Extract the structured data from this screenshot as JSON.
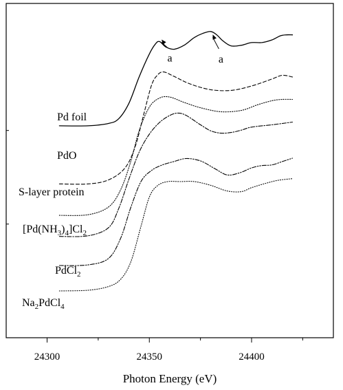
{
  "chart_data": {
    "type": "line",
    "title": "",
    "xlabel": "Photon Energy (eV)",
    "ylabel": "",
    "xlim": [
      24280,
      24440
    ],
    "x_ticks": [
      24300,
      24350,
      24400
    ],
    "x_tick_labels": [
      "24300",
      "24350",
      "24400"
    ],
    "y_units": "normalized absorption, vertically offset (arbitrary)",
    "ylim": [
      0,
      1
    ],
    "grid": false,
    "legend": "labels placed beside each curve",
    "series": [
      {
        "name": "Pd foil",
        "label_parts": [
          {
            "t": "Pd foil",
            "sub": false
          }
        ],
        "style": "solid",
        "x": [
          24306,
          24320,
          24330,
          24335,
          24340,
          24345,
          24350,
          24353,
          24355,
          24358,
          24362,
          24367,
          24372,
          24376,
          24380,
          24383,
          24386,
          24390,
          24395,
          24400,
          24405,
          24410,
          24414,
          24417,
          24420
        ],
        "y": [
          0.634,
          0.634,
          0.641,
          0.655,
          0.701,
          0.78,
          0.849,
          0.879,
          0.886,
          0.87,
          0.863,
          0.875,
          0.898,
          0.91,
          0.916,
          0.906,
          0.888,
          0.873,
          0.875,
          0.883,
          0.883,
          0.891,
          0.903,
          0.906,
          0.906
        ]
      },
      {
        "name": "PdO",
        "label_parts": [
          {
            "t": "PdO",
            "sub": false
          }
        ],
        "style": "dashed",
        "x": [
          24306,
          24320,
          24330,
          24338,
          24343,
          24347,
          24351,
          24354,
          24357,
          24362,
          24370,
          24380,
          24390,
          24400,
          24410,
          24415,
          24420
        ],
        "y": [
          0.46,
          0.46,
          0.472,
          0.507,
          0.57,
          0.662,
          0.754,
          0.786,
          0.795,
          0.782,
          0.759,
          0.742,
          0.74,
          0.753,
          0.774,
          0.785,
          0.78
        ]
      },
      {
        "name": "S-layer protein",
        "label_parts": [
          {
            "t": "S-layer protein",
            "sub": false
          }
        ],
        "style": "dotted",
        "x": [
          24306,
          24320,
          24330,
          24336,
          24341,
          24345,
          24350,
          24355,
          24360,
          24367,
          24375,
          24385,
          24395,
          24403,
          24410,
          24415,
          24420
        ],
        "y": [
          0.366,
          0.368,
          0.391,
          0.443,
          0.529,
          0.619,
          0.69,
          0.717,
          0.72,
          0.704,
          0.688,
          0.676,
          0.68,
          0.697,
          0.709,
          0.713,
          0.713
        ]
      },
      {
        "name": "[Pd(NH3)4]Cl2",
        "label_parts": [
          {
            "t": "[Pd(NH",
            "sub": false
          },
          {
            "t": "3",
            "sub": true
          },
          {
            "t": ")",
            "sub": false
          },
          {
            "t": "4",
            "sub": true
          },
          {
            "t": "]Cl",
            "sub": false
          },
          {
            "t": "2",
            "sub": true
          }
        ],
        "style": "dashdot",
        "x": [
          24306,
          24320,
          24330,
          24335,
          24340,
          24345,
          24350,
          24355,
          24360,
          24364,
          24368,
          24375,
          24380,
          24385,
          24390,
          24395,
          24400,
          24410,
          24420
        ],
        "y": [
          0.303,
          0.305,
          0.329,
          0.386,
          0.474,
          0.555,
          0.609,
          0.644,
          0.665,
          0.672,
          0.665,
          0.637,
          0.619,
          0.612,
          0.614,
          0.621,
          0.63,
          0.637,
          0.645
        ]
      },
      {
        "name": "PdCl2",
        "label_parts": [
          {
            "t": "PdCl",
            "sub": false
          },
          {
            "t": "2",
            "sub": true
          }
        ],
        "style": "dashdotdot",
        "x": [
          24306,
          24320,
          24330,
          24336,
          24341,
          24346,
          24351,
          24356,
          24362,
          24368,
          24375,
          24382,
          24388,
          24394,
          24400,
          24405,
          24410,
          24415,
          24420
        ],
        "y": [
          0.216,
          0.218,
          0.237,
          0.298,
          0.391,
          0.468,
          0.5,
          0.516,
          0.527,
          0.536,
          0.529,
          0.506,
          0.487,
          0.493,
          0.508,
          0.515,
          0.517,
          0.527,
          0.537
        ]
      },
      {
        "name": "Na2PdCl4",
        "label_parts": [
          {
            "t": "Na",
            "sub": false
          },
          {
            "t": "2",
            "sub": true
          },
          {
            "t": "PdCl",
            "sub": false
          },
          {
            "t": "4",
            "sub": true
          }
        ],
        "style": "fine-dotted",
        "x": [
          24306,
          24320,
          24330,
          24336,
          24341,
          24346,
          24350,
          24354,
          24359,
          24365,
          24372,
          24380,
          24388,
          24395,
          24400,
          24407,
          24413,
          24420
        ],
        "y": [
          0.14,
          0.142,
          0.153,
          0.175,
          0.228,
          0.335,
          0.421,
          0.455,
          0.467,
          0.467,
          0.467,
          0.456,
          0.439,
          0.437,
          0.449,
          0.462,
          0.471,
          0.476
        ]
      }
    ],
    "annotations": [
      {
        "text": "a",
        "arrow_tip": [
          24356,
          0.892
        ],
        "text_pos": [
          24360,
          0.826
        ]
      },
      {
        "text": "a",
        "arrow_tip": [
          24381,
          0.907
        ],
        "text_pos": [
          24385,
          0.823
        ]
      }
    ]
  }
}
